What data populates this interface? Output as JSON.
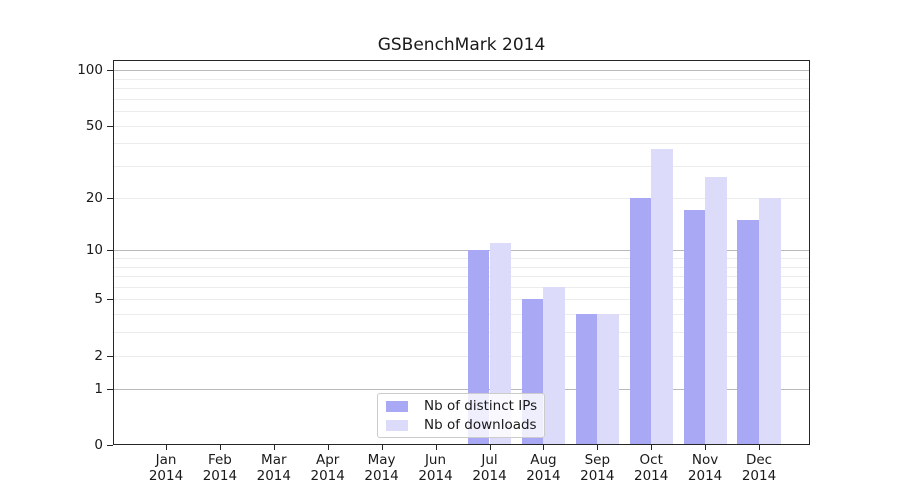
{
  "chart_data": {
    "type": "bar",
    "title": "GSBenchMark 2014",
    "categories": [
      "Jan",
      "Feb",
      "Mar",
      "Apr",
      "May",
      "Jun",
      "Jul",
      "Aug",
      "Sep",
      "Oct",
      "Nov",
      "Dec"
    ],
    "year_label": "2014",
    "series": [
      {
        "name": "Nb of distinct IPs",
        "color": "#a8a8f5",
        "values": [
          0,
          0,
          0,
          0,
          0,
          0,
          10,
          5,
          4,
          20,
          17,
          15
        ]
      },
      {
        "name": "Nb of downloads",
        "color": "#dcdcfa",
        "values": [
          0,
          0,
          0,
          0,
          0,
          0,
          11,
          6,
          4,
          37,
          26,
          20
        ]
      }
    ],
    "yscale": "log1p",
    "ylim": [
      0,
      114
    ],
    "y_ticks": [
      0,
      1,
      2,
      5,
      10,
      20,
      50,
      100
    ],
    "y_gridlines_decade": [
      1,
      10,
      100
    ],
    "y_gridlines_minor": [
      2,
      3,
      4,
      5,
      6,
      7,
      8,
      9,
      20,
      30,
      40,
      50,
      60,
      70,
      80,
      90
    ],
    "grid": true,
    "legend_position": "lower center",
    "xlabel": "",
    "ylabel": ""
  },
  "colors": {
    "background": "#ffffff",
    "gridline_minor": "#ececec",
    "gridline_decade": "#bababa",
    "spine": "#262626",
    "tick": "#262626",
    "text": "#1a1a1a",
    "legend_border": "#cccccc"
  }
}
